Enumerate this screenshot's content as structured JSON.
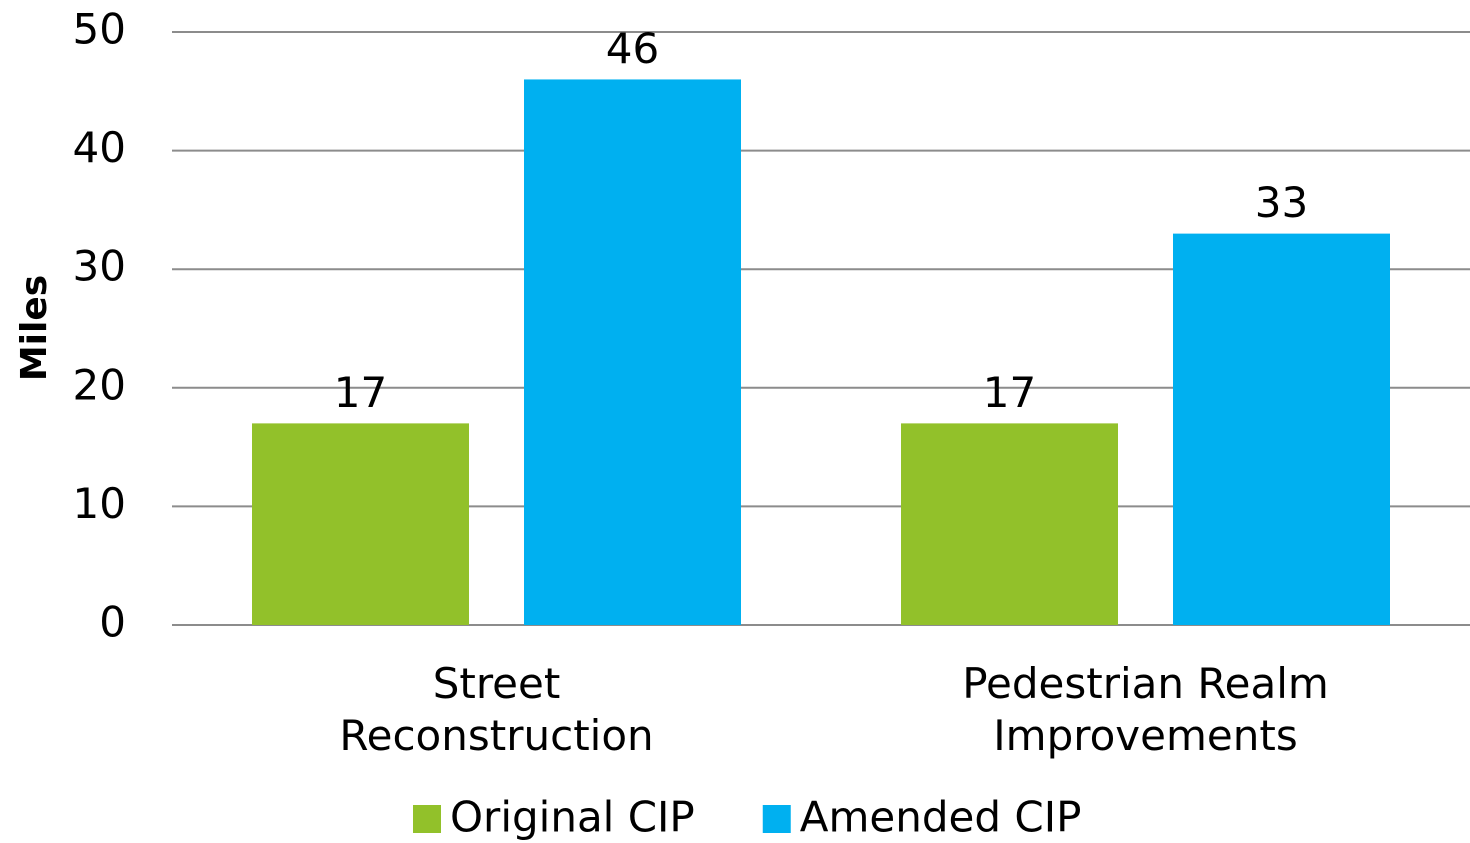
{
  "chart_data": {
    "type": "bar",
    "y_label": "Miles",
    "categories": [
      "Street Reconstruction",
      "Pedestrian Realm Improvements"
    ],
    "series": [
      {
        "name": "Original CIP",
        "color": "#92c12a",
        "values": [
          17,
          17
        ]
      },
      {
        "name": "Amended CIP",
        "color": "#00b0f0",
        "values": [
          46,
          33
        ]
      }
    ],
    "ylim": [
      0,
      50
    ],
    "yticks": [
      0,
      10,
      20,
      30,
      40,
      50
    ],
    "grid": true,
    "legend": "bottom"
  }
}
